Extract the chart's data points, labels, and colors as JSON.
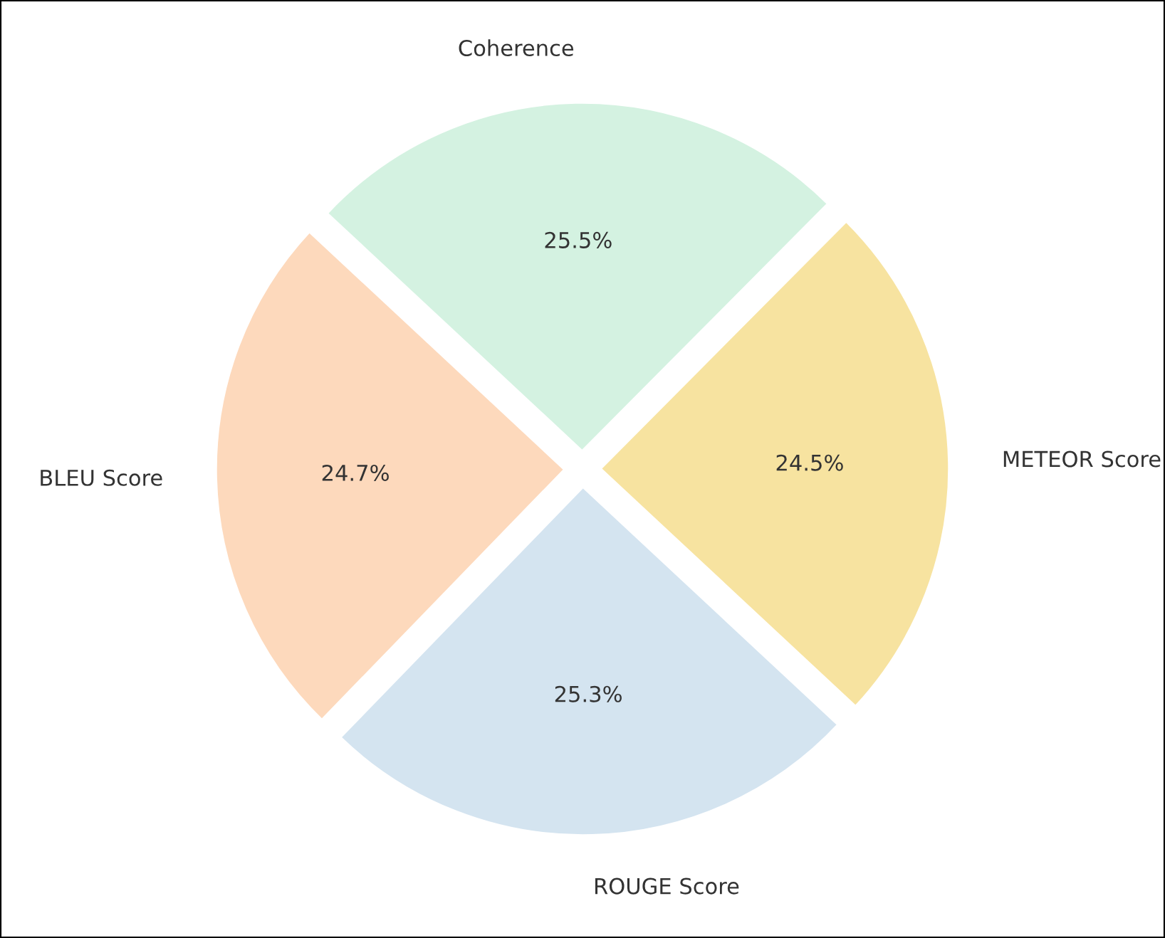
{
  "chart_data": {
    "type": "pie",
    "categories": [
      "BLEU Score",
      "ROUGE Score",
      "METEOR Score",
      "Coherence"
    ],
    "values": [
      24.7,
      25.3,
      24.5,
      25.5
    ],
    "colors": [
      "#fdd9bc",
      "#d4e4f0",
      "#f7e3a0",
      "#d4f2e1"
    ],
    "value_labels": [
      "24.7%",
      "25.3%",
      "24.5%",
      "25.5%"
    ],
    "legend": false
  }
}
